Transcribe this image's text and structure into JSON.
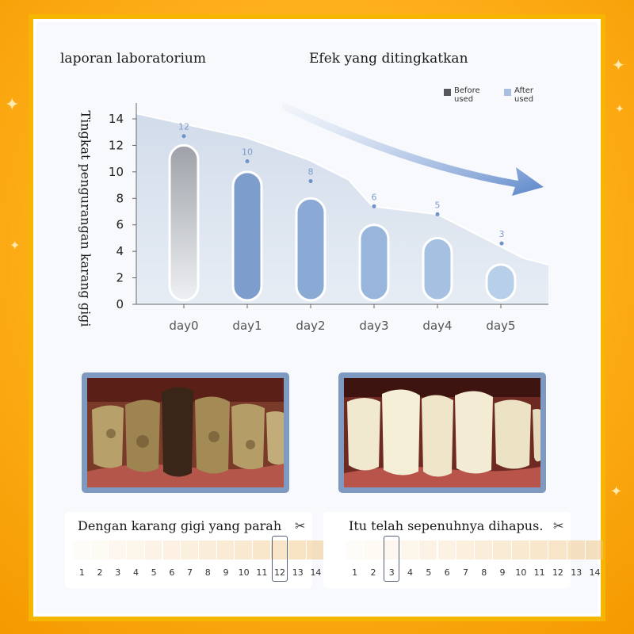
{
  "headings": {
    "left": "laporan laboratorium",
    "right": "Efek yang ditingkatkan"
  },
  "legend": [
    {
      "label_line1": "Before",
      "label_line2": "used",
      "color": "#55585e"
    },
    {
      "label_line1": "After",
      "label_line2": "used",
      "color": "#a9bfe0"
    }
  ],
  "chart_data": {
    "type": "bar",
    "ylabel": "Tingkat pengurangan karang gigi",
    "xlabel": "",
    "ylim": [
      0,
      14
    ],
    "yticks": [
      0,
      2,
      4,
      6,
      8,
      10,
      12,
      14
    ],
    "categories": [
      "day0",
      "day1",
      "day2",
      "day3",
      "day4",
      "day5"
    ],
    "values": [
      12,
      10,
      8,
      6,
      5,
      3
    ],
    "bar_colors": [
      "#a7aaae",
      "#7d9dcc",
      "#8aa9d4",
      "#98b5dc",
      "#a6c0e2",
      "#b8cfea"
    ],
    "trend_line_values": [
      14.4,
      12.6,
      10.9,
      9.4,
      7.4,
      6.8,
      3.5,
      3.0
    ],
    "data_labels": [
      "12",
      "10",
      "8",
      "6",
      "5",
      "3"
    ],
    "data_points": [
      12.7,
      10.8,
      9.3,
      7.4,
      6.8,
      4.6
    ],
    "grid": false,
    "legend_position": "top-right"
  },
  "photos": {
    "before_label": "before photo",
    "after_label": "after photo"
  },
  "scales": [
    {
      "title": "Dengan karang gigi yang parah",
      "icon": "scissors-icon",
      "numbers": [
        "1",
        "2",
        "3",
        "4",
        "5",
        "6",
        "7",
        "8",
        "9",
        "10",
        "11",
        "12",
        "13",
        "14"
      ],
      "selected": "12"
    },
    {
      "title": "Itu telah sepenuhnya dihapus.",
      "icon": "scissors-icon",
      "numbers": [
        "1",
        "2",
        "3",
        "4",
        "5",
        "6",
        "7",
        "8",
        "9",
        "10",
        "11",
        "12",
        "13",
        "14"
      ],
      "selected": "3"
    }
  ],
  "colors": {
    "accent_orange": "#f6b500",
    "arrow_blue": "#5b86c9",
    "photo_border": "#7f9ac0"
  }
}
